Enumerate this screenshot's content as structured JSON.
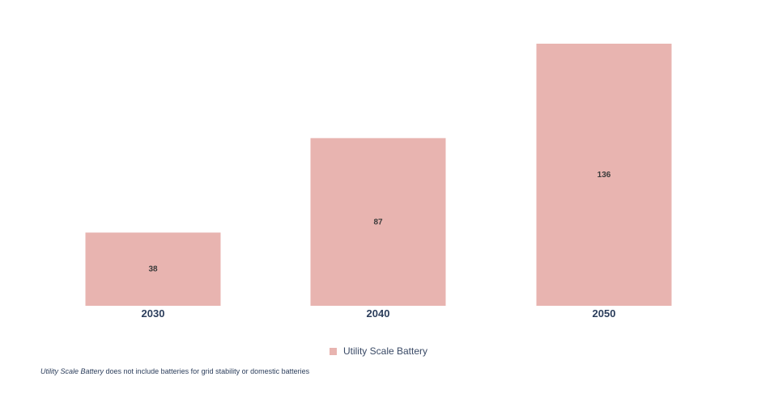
{
  "chart_data": {
    "type": "bar",
    "categories": [
      "2030",
      "2040",
      "2050"
    ],
    "series": [
      {
        "name": "Utility Scale Battery",
        "values": [
          38,
          87,
          136
        ],
        "color": "#e8b4b0"
      }
    ],
    "ylim": [
      0,
      136
    ],
    "grid": false,
    "legend_position": "bottom-center",
    "title": "",
    "xlabel": "",
    "ylabel": ""
  },
  "legend": {
    "label": "Utility Scale Battery",
    "color": "#e8b4b0"
  },
  "footnote": {
    "emphasis": "Utility Scale Battery",
    "text": " does not include batteries for grid stability or domestic batteries"
  }
}
